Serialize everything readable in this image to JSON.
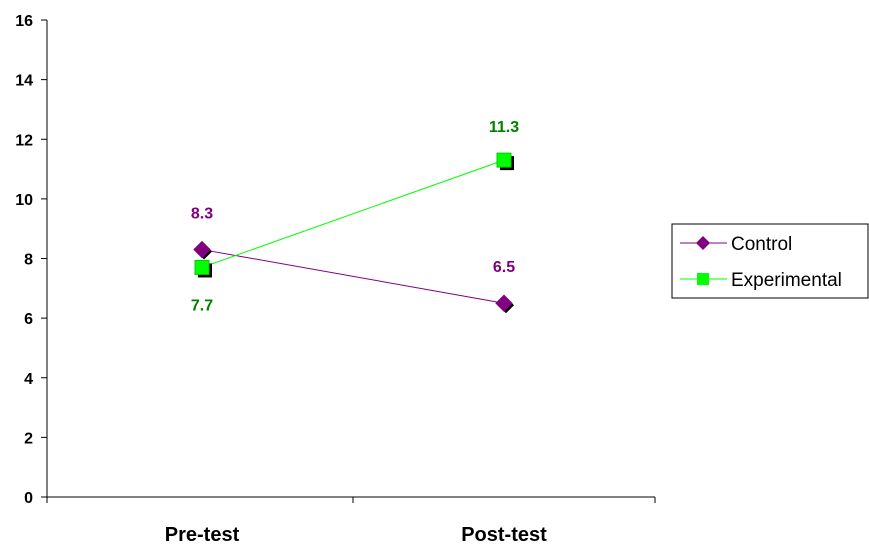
{
  "chart_data": {
    "type": "line",
    "title": "",
    "xlabel": "",
    "ylabel": "",
    "categories": [
      "Pre-test",
      "Post-test"
    ],
    "ylim": [
      0,
      16
    ],
    "yticks": [
      0,
      2,
      4,
      6,
      8,
      10,
      12,
      14,
      16
    ],
    "ytick_labels": [
      "0",
      "2",
      "4",
      "6",
      "8",
      "10",
      "12",
      "14",
      "16"
    ],
    "grid": false,
    "legend_position": "right",
    "series": [
      {
        "name": "Control",
        "values": [
          8.3,
          6.5
        ],
        "labels": [
          "8.3",
          "6.5"
        ],
        "marker": "diamond",
        "line_color": "#800080",
        "marker_color": "#800080",
        "label_color": "#800080"
      },
      {
        "name": "Experimental",
        "values": [
          7.7,
          11.3
        ],
        "labels": [
          "7.7",
          "11.3"
        ],
        "marker": "square",
        "line_color": "#00ff00",
        "marker_color": "#00ff00",
        "label_color": "#008000"
      }
    ]
  }
}
